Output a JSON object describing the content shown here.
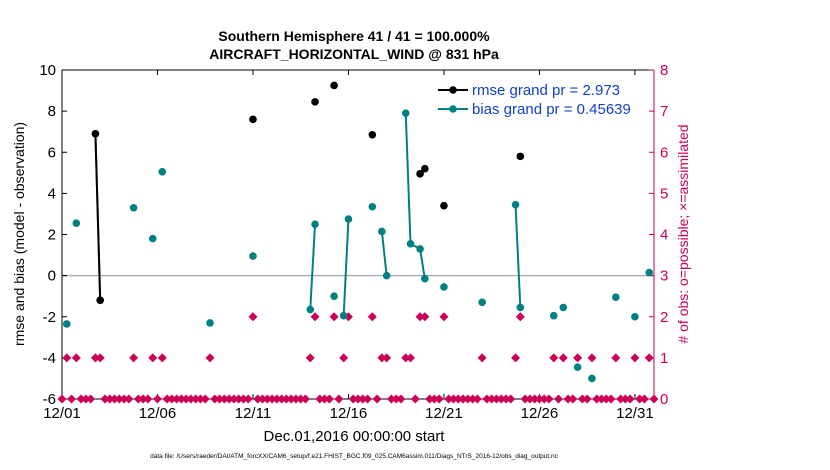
{
  "chart_data": {
    "type": "scatter",
    "title_line1": "Southern Hemisphere 41 / 41 = 100.000%",
    "title_line2": "AIRCRAFT_HORIZONTAL_WIND @ 831 hPa",
    "xlabel": "Dec.01,2016 00:00:00 start",
    "ylabel_left": "rmse and bias (model - observation)",
    "ylabel_right": "# of obs: o=possible; ×=assimilated",
    "footnote": "data file: /Users/raeder/DAI/ATM_forcXX/CAM6_setup/f.e21.FHIST_BGC.f09_025.CAM6assim.011/Diags_NTrS_2016-12/obs_diag_output.nc",
    "xlim": [
      1,
      32
    ],
    "ylim_left": [
      -6,
      10
    ],
    "ylim_right": [
      0,
      8
    ],
    "x_ticks": [
      {
        "value": 1,
        "label": "12/01"
      },
      {
        "value": 6,
        "label": "12/06"
      },
      {
        "value": 11,
        "label": "12/11"
      },
      {
        "value": 16,
        "label": "12/16"
      },
      {
        "value": 21,
        "label": "12/21"
      },
      {
        "value": 26,
        "label": "12/26"
      },
      {
        "value": 31,
        "label": "12/31"
      }
    ],
    "y_ticks_left": [
      "-6",
      "-4",
      "-2",
      "0",
      "2",
      "4",
      "6",
      "8",
      "10"
    ],
    "y_ticks_right": [
      "0",
      "1",
      "2",
      "3",
      "4",
      "5",
      "6",
      "7",
      "8"
    ],
    "legend": [
      {
        "label": "rmse grand pr = 2.973",
        "color": "#000000"
      },
      {
        "label": "bias grand pr = 0.45639",
        "color": "#008080"
      }
    ],
    "colors": {
      "rmse": "#000000",
      "bias": "#008080",
      "obs": "#cc0055",
      "zero_line": "#b0b0b0",
      "legend_text": "#1040cc"
    },
    "series": [
      {
        "name": "rmse",
        "color": "#000000",
        "points": [
          [
            2.75,
            6.9
          ],
          [
            3.0,
            -1.2
          ],
          [
            11.0,
            7.6
          ],
          [
            14.25,
            8.45
          ],
          [
            15.25,
            9.25
          ],
          [
            17.25,
            6.85
          ],
          [
            19.75,
            4.95
          ],
          [
            20.0,
            5.2
          ],
          [
            21.0,
            3.4
          ],
          [
            25.0,
            5.8
          ]
        ],
        "segments": [
          [
            [
              2.75,
              6.9
            ],
            [
              3.0,
              -1.2
            ]
          ],
          [
            [
              19.75,
              4.95
            ],
            [
              20.0,
              5.2
            ]
          ]
        ]
      },
      {
        "name": "bias",
        "color": "#008080",
        "points": [
          [
            1.25,
            -2.35
          ],
          [
            1.75,
            2.55
          ],
          [
            2.75,
            6.9
          ],
          [
            3.0,
            -1.2
          ],
          [
            4.75,
            3.3
          ],
          [
            5.75,
            1.8
          ],
          [
            6.25,
            5.05
          ],
          [
            8.75,
            -2.3
          ],
          [
            11.0,
            0.95
          ],
          [
            14.0,
            -1.65
          ],
          [
            14.25,
            2.5
          ],
          [
            15.25,
            -1.0
          ],
          [
            15.75,
            -1.95
          ],
          [
            16.0,
            2.75
          ],
          [
            17.25,
            3.35
          ],
          [
            17.75,
            2.15
          ],
          [
            18.0,
            0.0
          ],
          [
            19.0,
            7.9
          ],
          [
            19.25,
            1.55
          ],
          [
            19.75,
            1.3
          ],
          [
            20.0,
            -0.15
          ],
          [
            21.0,
            -0.55
          ],
          [
            23.0,
            -1.3
          ],
          [
            24.75,
            3.45
          ],
          [
            25.0,
            -1.55
          ],
          [
            26.75,
            -1.95
          ],
          [
            27.25,
            -1.55
          ],
          [
            28.0,
            -4.45
          ],
          [
            28.75,
            -5.0
          ],
          [
            30.0,
            -1.05
          ],
          [
            31.0,
            -2.0
          ],
          [
            31.75,
            0.15
          ]
        ],
        "segments": [
          [
            [
              2.75,
              6.9
            ],
            [
              3.0,
              -1.2
            ]
          ],
          [
            [
              14.0,
              -1.65
            ],
            [
              14.25,
              2.5
            ]
          ],
          [
            [
              15.75,
              -1.95
            ],
            [
              16.0,
              2.75
            ]
          ],
          [
            [
              17.75,
              2.15
            ],
            [
              18.0,
              0.0
            ]
          ],
          [
            [
              19.0,
              7.9
            ],
            [
              19.25,
              1.55
            ],
            [
              19.75,
              1.3
            ],
            [
              20.0,
              -0.15
            ]
          ],
          [
            [
              24.75,
              3.45
            ],
            [
              25.0,
              -1.55
            ]
          ]
        ]
      }
    ],
    "obs_possible": [
      [
        1.0,
        0
      ],
      [
        1.25,
        1
      ],
      [
        1.5,
        0
      ],
      [
        1.75,
        1
      ],
      [
        2.0,
        0
      ],
      [
        2.25,
        0
      ],
      [
        2.5,
        0
      ],
      [
        2.75,
        1
      ],
      [
        3.0,
        1
      ],
      [
        3.25,
        0
      ],
      [
        3.5,
        0
      ],
      [
        3.75,
        0
      ],
      [
        4.0,
        0
      ],
      [
        4.25,
        0
      ],
      [
        4.5,
        0
      ],
      [
        4.75,
        1
      ],
      [
        5.0,
        0
      ],
      [
        5.25,
        0
      ],
      [
        5.5,
        0
      ],
      [
        5.75,
        1
      ],
      [
        6.0,
        0
      ],
      [
        6.25,
        1
      ],
      [
        6.5,
        0
      ],
      [
        6.75,
        0
      ],
      [
        7.0,
        0
      ],
      [
        7.25,
        0
      ],
      [
        7.5,
        0
      ],
      [
        7.75,
        0
      ],
      [
        8.0,
        0
      ],
      [
        8.25,
        0
      ],
      [
        8.5,
        0
      ],
      [
        8.75,
        1
      ],
      [
        9.0,
        0
      ],
      [
        9.25,
        0
      ],
      [
        9.5,
        0
      ],
      [
        9.75,
        0
      ],
      [
        10.0,
        0
      ],
      [
        10.25,
        0
      ],
      [
        10.5,
        0
      ],
      [
        10.75,
        0
      ],
      [
        11.0,
        2
      ],
      [
        11.25,
        0
      ],
      [
        11.5,
        0
      ],
      [
        11.75,
        0
      ],
      [
        12.0,
        0
      ],
      [
        12.25,
        0
      ],
      [
        12.5,
        0
      ],
      [
        12.75,
        0
      ],
      [
        13.0,
        0
      ],
      [
        13.25,
        0
      ],
      [
        13.5,
        0
      ],
      [
        13.75,
        0
      ],
      [
        14.0,
        1
      ],
      [
        14.25,
        2
      ],
      [
        14.5,
        0
      ],
      [
        14.75,
        0
      ],
      [
        15.0,
        0
      ],
      [
        15.25,
        2
      ],
      [
        15.5,
        0
      ],
      [
        15.75,
        1
      ],
      [
        16.0,
        2
      ],
      [
        16.25,
        0
      ],
      [
        16.5,
        0
      ],
      [
        16.75,
        0
      ],
      [
        17.0,
        0
      ],
      [
        17.25,
        2
      ],
      [
        17.5,
        0
      ],
      [
        17.75,
        1
      ],
      [
        18.0,
        1
      ],
      [
        18.25,
        0
      ],
      [
        18.5,
        0
      ],
      [
        18.75,
        0
      ],
      [
        19.0,
        1
      ],
      [
        19.25,
        1
      ],
      [
        19.5,
        0
      ],
      [
        19.75,
        2
      ],
      [
        20.0,
        2
      ],
      [
        20.25,
        0
      ],
      [
        20.5,
        0
      ],
      [
        20.75,
        0
      ],
      [
        21.0,
        2
      ],
      [
        21.25,
        0
      ],
      [
        21.5,
        0
      ],
      [
        21.75,
        0
      ],
      [
        22.0,
        0
      ],
      [
        22.25,
        0
      ],
      [
        22.5,
        0
      ],
      [
        22.75,
        0
      ],
      [
        23.0,
        1
      ],
      [
        23.25,
        0
      ],
      [
        23.5,
        0
      ],
      [
        23.75,
        0
      ],
      [
        24.0,
        0
      ],
      [
        24.25,
        0
      ],
      [
        24.5,
        0
      ],
      [
        24.75,
        1
      ],
      [
        25.0,
        2
      ],
      [
        25.25,
        0
      ],
      [
        25.5,
        0
      ],
      [
        25.75,
        0
      ],
      [
        26.0,
        0
      ],
      [
        26.25,
        0
      ],
      [
        26.5,
        0
      ],
      [
        26.75,
        1
      ],
      [
        27.0,
        0
      ],
      [
        27.25,
        1
      ],
      [
        27.5,
        0
      ],
      [
        27.75,
        0
      ],
      [
        28.0,
        1
      ],
      [
        28.25,
        0
      ],
      [
        28.5,
        0
      ],
      [
        28.75,
        1
      ],
      [
        29.0,
        0
      ],
      [
        29.25,
        0
      ],
      [
        29.5,
        0
      ],
      [
        29.75,
        0
      ],
      [
        30.0,
        1
      ],
      [
        30.25,
        0
      ],
      [
        30.5,
        0
      ],
      [
        30.75,
        0
      ],
      [
        31.0,
        1
      ],
      [
        31.25,
        0
      ],
      [
        31.5,
        0
      ],
      [
        31.75,
        1
      ],
      [
        32.0,
        0
      ]
    ]
  }
}
